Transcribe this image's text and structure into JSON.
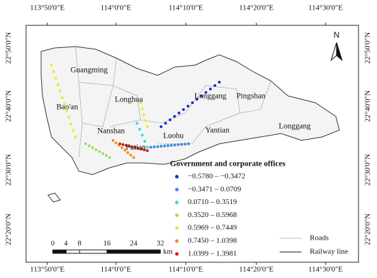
{
  "top_labels": [
    "113°50'0\"E",
    "114°0'0\"E",
    "114°10'0\"E",
    "114°20'0\"E",
    "114°30'0\"E"
  ],
  "left_labels": [
    "22°50'0\"N",
    "22°40'0\"N",
    "22°30'0\"N",
    "22°20'0\"N"
  ],
  "districts": [
    "Guangming",
    "Bao'an",
    "Longhua",
    "Nanshan",
    "Futian",
    "Luohu",
    "Longgang",
    "Pingshan",
    "Yantian",
    "Longgang"
  ],
  "north": "N",
  "legend": {
    "title": "Government and corporate offices",
    "items": [
      {
        "label": "−0.5780 – −0.3472",
        "color": "#1c2fc8"
      },
      {
        "label": "−0.3471 – 0.0709",
        "color": "#3f86e0"
      },
      {
        "label": "0.0710 – 0.3519",
        "color": "#35d8e0"
      },
      {
        "label": "0.3520 – 0.5968",
        "color": "#9be060"
      },
      {
        "label": "0.5969 – 0.7449",
        "color": "#f0e830"
      },
      {
        "label": "0.7450 – 1.0398",
        "color": "#f09020"
      },
      {
        "label": "1.0399 – 1.3981",
        "color": "#e01818"
      }
    ]
  },
  "scale": {
    "ticks": [
      "0",
      "4",
      "8",
      "16",
      "24",
      "32"
    ],
    "unit": "km"
  },
  "line_legend": [
    "Roads",
    "Railway line"
  ]
}
